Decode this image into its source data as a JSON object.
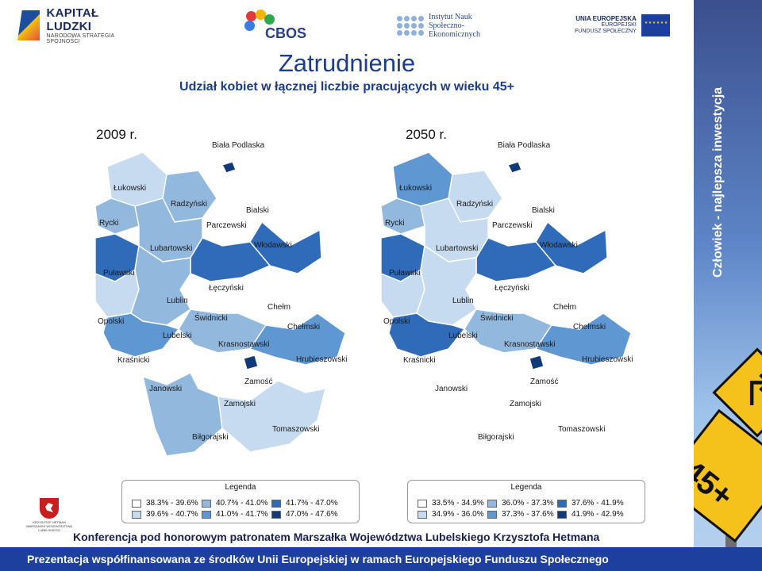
{
  "logos": {
    "kapital": {
      "name": "KAPITAŁ LUDZKI",
      "sub": "NARODOWA STRATEGIA SPÓJNOŚCI"
    },
    "cbos": {
      "name": "CBOS"
    },
    "ins": {
      "line1": "Instytut Nauk",
      "line2": "Społeczno-",
      "line3": "Ekonomicznych"
    },
    "ue": {
      "line1": "UNIA EUROPEJSKA",
      "line2": "EUROPEJSKI",
      "line3": "FUNDUSZ SPOŁECZNY"
    }
  },
  "title": "Zatrudnienie",
  "subtitle": "Udział kobiet w łącznej liczbie pracujących w wieku 45+",
  "maps": [
    {
      "year": "2009 r.",
      "legend_title": "Legenda",
      "legend": [
        {
          "label": "38.3% - 39.6%",
          "color": "#ffffff"
        },
        {
          "label": "40.7% - 41.0%",
          "color": "#92b8de"
        },
        {
          "label": "41.7% - 47.0%",
          "color": "#2f6bb8"
        },
        {
          "label": "39.6% - 40.7%",
          "color": "#c6dbef"
        },
        {
          "label": "41.0% - 41.7%",
          "color": "#5e97d1"
        },
        {
          "label": "47.0% - 47.6%",
          "color": "#103a7a"
        }
      ],
      "regions": {
        "biala": {
          "label": "Biała Podlaska",
          "color": "#ffffff"
        },
        "bialacity": {
          "label": "",
          "color": "#103a7a"
        },
        "bialski": {
          "label": "Bialski",
          "color": "#ffffff"
        },
        "lukowski": {
          "label": "Łukowski",
          "color": "#c6dbef"
        },
        "radzynski": {
          "label": "Radzyński",
          "color": "#92b8de"
        },
        "rycki": {
          "label": "Rycki",
          "color": "#92b8de"
        },
        "parczewski": {
          "label": "Parczewski",
          "color": "#ffffff"
        },
        "lubartowski": {
          "label": "Lubartowski",
          "color": "#92b8de"
        },
        "wlodawski": {
          "label": "Włodawski",
          "color": "#2f6bb8"
        },
        "pulawski": {
          "label": "Puławski",
          "color": "#2f6bb8"
        },
        "leczynski": {
          "label": "Łęczyński",
          "color": "#2f6bb8"
        },
        "swidnicki": {
          "label": "Świdnicki",
          "color": "#ffffff"
        },
        "lublin": {
          "label": "Lublin",
          "color": "#103a7a"
        },
        "chelm": {
          "label": "Chełm",
          "color": "#103a7a"
        },
        "chelmski": {
          "label": "Chełmski",
          "color": "#ffffff"
        },
        "opolski": {
          "label": "Opolski",
          "color": "#c6dbef"
        },
        "lubelski": {
          "label": "Lubelski",
          "color": "#92b8de"
        },
        "krasnostawski": {
          "label": "Krasnostawski",
          "color": "#92b8de"
        },
        "hrubieszowski": {
          "label": "Hrubieszowski",
          "color": "#5e97d1"
        },
        "krasnicki": {
          "label": "Kraśnicki",
          "color": "#5e97d1"
        },
        "janowski": {
          "label": "Janowski",
          "color": "#ffffff"
        },
        "zamosc": {
          "label": "Zamość",
          "color": "#103a7a"
        },
        "zamojski": {
          "label": "Zamojski",
          "color": "#ffffff"
        },
        "tomaszowski": {
          "label": "Tomaszowski",
          "color": "#c6dbef"
        },
        "bilgorajski": {
          "label": "Biłgorajski",
          "color": "#92b8de"
        }
      }
    },
    {
      "year": "2050 r.",
      "legend_title": "Legenda",
      "legend": [
        {
          "label": "33.5% - 34.9%",
          "color": "#ffffff"
        },
        {
          "label": "36.0% - 37.3%",
          "color": "#92b8de"
        },
        {
          "label": "37.6% - 41.9%",
          "color": "#2f6bb8"
        },
        {
          "label": "34.9% - 36.0%",
          "color": "#c6dbef"
        },
        {
          "label": "37.3% - 37.6%",
          "color": "#5e97d1"
        },
        {
          "label": "41.9% - 42.9%",
          "color": "#103a7a"
        }
      ],
      "regions": {
        "biala": {
          "label": "Biała Podlaska",
          "color": "#ffffff"
        },
        "bialacity": {
          "label": "",
          "color": "#103a7a"
        },
        "bialski": {
          "label": "Bialski",
          "color": "#ffffff"
        },
        "lukowski": {
          "label": "Łukowski",
          "color": "#5e97d1"
        },
        "radzynski": {
          "label": "Radzyński",
          "color": "#c6dbef"
        },
        "rycki": {
          "label": "Rycki",
          "color": "#92b8de"
        },
        "parczewski": {
          "label": "Parczewski",
          "color": "#ffffff"
        },
        "lubartowski": {
          "label": "Lubartowski",
          "color": "#c6dbef"
        },
        "wlodawski": {
          "label": "Włodawski",
          "color": "#2f6bb8"
        },
        "pulawski": {
          "label": "Puławski",
          "color": "#2f6bb8"
        },
        "leczynski": {
          "label": "Łęczyński",
          "color": "#2f6bb8"
        },
        "swidnicki": {
          "label": "Świdnicki",
          "color": "#ffffff"
        },
        "lublin": {
          "label": "Lublin",
          "color": "#103a7a"
        },
        "chelm": {
          "label": "Chełm",
          "color": "#103a7a"
        },
        "chelmski": {
          "label": "Chełmski",
          "color": "#ffffff"
        },
        "opolski": {
          "label": "Opolski",
          "color": "#c6dbef"
        },
        "lubelski": {
          "label": "Lubelski",
          "color": "#c6dbef"
        },
        "krasnostawski": {
          "label": "Krasnostawski",
          "color": "#92b8de"
        },
        "hrubieszowski": {
          "label": "Hrubieszowski",
          "color": "#5e97d1"
        },
        "krasnicki": {
          "label": "Kraśnicki",
          "color": "#2f6bb8"
        },
        "janowski": {
          "label": "Janowski",
          "color": "#ffffff"
        },
        "zamosc": {
          "label": "Zamość",
          "color": "#103a7a"
        },
        "zamojski": {
          "label": "Zamojski",
          "color": "#ffffff"
        },
        "tomaszowski": {
          "label": "Tomaszowski",
          "color": "#ffffff"
        },
        "bilgorajski": {
          "label": "Biłgorajski",
          "color": "#ffffff"
        }
      }
    }
  ],
  "crest_caption": "KRZYSZTOF HETMAN MARSZAŁEK WOJEWÓDZTWA LUBELSKIEGO",
  "conference": "Konferencja pod honorowym patronatem Marszałka Województwa Lubelskiego Krzysztofa Hetmana",
  "banner": "Prezentacja współfinansowana ze środków Unii Europejskiej w ramach Europejskiego Funduszu Społecznego",
  "side_text": "Człowiek - najlepsza inwestycja",
  "sign_text": "45+"
}
